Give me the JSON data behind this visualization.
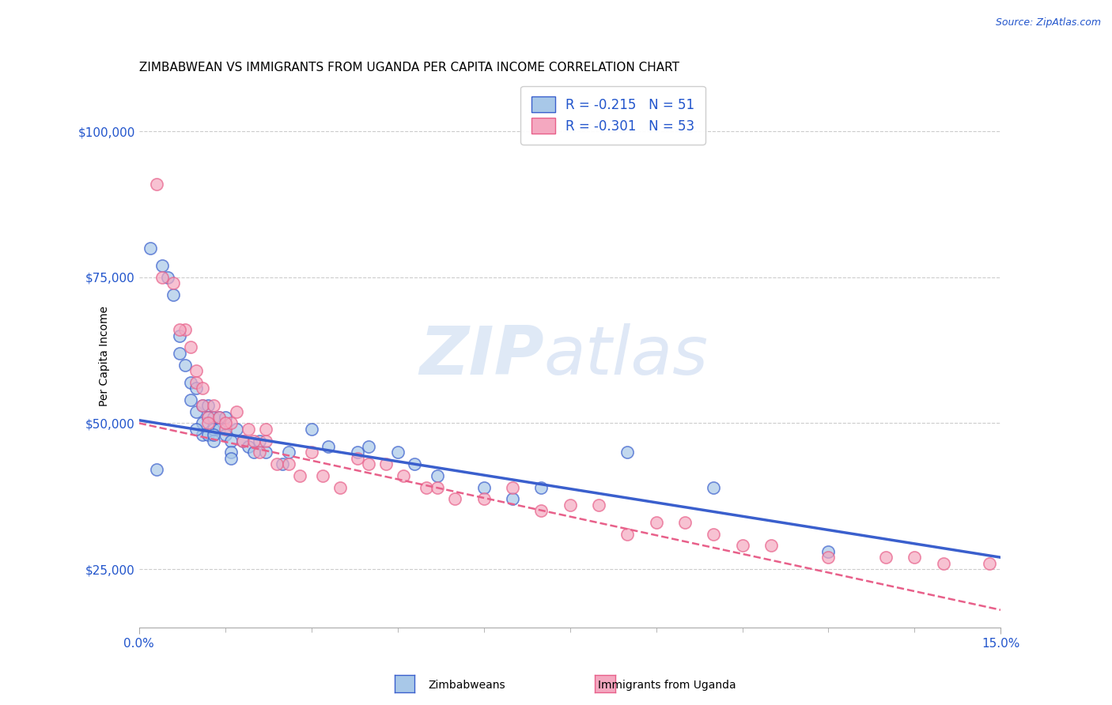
{
  "title": "ZIMBABWEAN VS IMMIGRANTS FROM UGANDA PER CAPITA INCOME CORRELATION CHART",
  "source": "Source: ZipAtlas.com",
  "ylabel": "Per Capita Income",
  "xlim": [
    0.0,
    0.15
  ],
  "ylim": [
    15000,
    108000
  ],
  "yticks": [
    25000,
    50000,
    75000,
    100000
  ],
  "ytick_labels": [
    "$25,000",
    "$50,000",
    "$75,000",
    "$100,000"
  ],
  "xtick_labels": [
    "0.0%",
    "15.0%"
  ],
  "color_blue": "#a8c8e8",
  "color_pink": "#f4a8c0",
  "line_blue": "#3a5fcd",
  "line_pink": "#e8608a",
  "watermark_zip": "ZIP",
  "watermark_atlas": "atlas",
  "title_fontsize": 11,
  "label_fontsize": 10,
  "tick_fontsize": 11,
  "blue_scatter_x": [
    0.002,
    0.004,
    0.005,
    0.006,
    0.007,
    0.008,
    0.009,
    0.009,
    0.01,
    0.01,
    0.011,
    0.011,
    0.011,
    0.012,
    0.012,
    0.012,
    0.013,
    0.013,
    0.013,
    0.014,
    0.014,
    0.015,
    0.015,
    0.016,
    0.016,
    0.017,
    0.018,
    0.019,
    0.02,
    0.021,
    0.022,
    0.025,
    0.026,
    0.03,
    0.033,
    0.038,
    0.04,
    0.045,
    0.048,
    0.052,
    0.06,
    0.065,
    0.07,
    0.085,
    0.1,
    0.12,
    0.003,
    0.007,
    0.01,
    0.013,
    0.016
  ],
  "blue_scatter_y": [
    80000,
    77000,
    75000,
    72000,
    65000,
    60000,
    57000,
    54000,
    56000,
    52000,
    53000,
    50000,
    48000,
    53000,
    51000,
    48000,
    51000,
    49000,
    47000,
    51000,
    49000,
    51000,
    48000,
    47000,
    45000,
    49000,
    47000,
    46000,
    45000,
    47000,
    45000,
    43000,
    45000,
    49000,
    46000,
    45000,
    46000,
    45000,
    43000,
    41000,
    39000,
    37000,
    39000,
    45000,
    39000,
    28000,
    42000,
    62000,
    49000,
    48000,
    44000
  ],
  "pink_scatter_x": [
    0.003,
    0.006,
    0.008,
    0.009,
    0.01,
    0.01,
    0.011,
    0.011,
    0.012,
    0.013,
    0.014,
    0.015,
    0.016,
    0.017,
    0.018,
    0.019,
    0.02,
    0.021,
    0.022,
    0.024,
    0.026,
    0.028,
    0.03,
    0.032,
    0.035,
    0.038,
    0.04,
    0.043,
    0.046,
    0.05,
    0.052,
    0.055,
    0.06,
    0.065,
    0.07,
    0.075,
    0.08,
    0.085,
    0.09,
    0.095,
    0.1,
    0.105,
    0.11,
    0.12,
    0.13,
    0.135,
    0.14,
    0.148,
    0.004,
    0.007,
    0.012,
    0.015,
    0.022
  ],
  "pink_scatter_y": [
    91000,
    74000,
    66000,
    63000,
    59000,
    57000,
    56000,
    53000,
    51000,
    53000,
    51000,
    49000,
    50000,
    52000,
    47000,
    49000,
    47000,
    45000,
    47000,
    43000,
    43000,
    41000,
    45000,
    41000,
    39000,
    44000,
    43000,
    43000,
    41000,
    39000,
    39000,
    37000,
    37000,
    39000,
    35000,
    36000,
    36000,
    31000,
    33000,
    33000,
    31000,
    29000,
    29000,
    27000,
    27000,
    27000,
    26000,
    26000,
    75000,
    66000,
    50000,
    50000,
    49000
  ],
  "blue_trend_x0": 0.0,
  "blue_trend_y0": 50500,
  "blue_trend_x1": 0.15,
  "blue_trend_y1": 27000,
  "pink_trend_x0": 0.0,
  "pink_trend_y0": 50000,
  "pink_trend_x1": 0.15,
  "pink_trend_y1": 18000
}
